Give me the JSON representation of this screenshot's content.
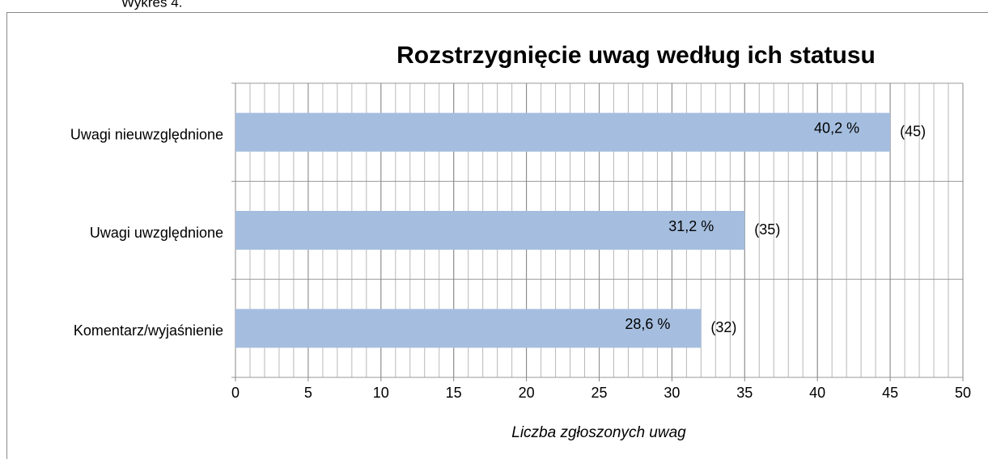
{
  "caption": "Wykres 4.",
  "chart_data": {
    "type": "hbar",
    "title": "Rozstrzygnięcie uwag według ich statusu",
    "categories": [
      "Uwagi nieuwzględnione",
      "Uwagi uwzględnione",
      "Komentarz/wyjaśnienie"
    ],
    "values": [
      45,
      35,
      32
    ],
    "value_labels": [
      "(45)",
      "(35)",
      "(32)"
    ],
    "shares": {
      "values": [
        40.2,
        31.2,
        28.6
      ],
      "value_labels": [
        "40,2 %",
        "31,2 %",
        "28,6 %"
      ]
    },
    "color": "#a5bedf",
    "xlabel": "Liczba zgłoszonych uwag",
    "xlim": [
      0,
      50
    ],
    "xticks": [
      0,
      5,
      10,
      15,
      20,
      25,
      30,
      35,
      40,
      45,
      50
    ],
    "grid": true,
    "minor_grid": true
  }
}
